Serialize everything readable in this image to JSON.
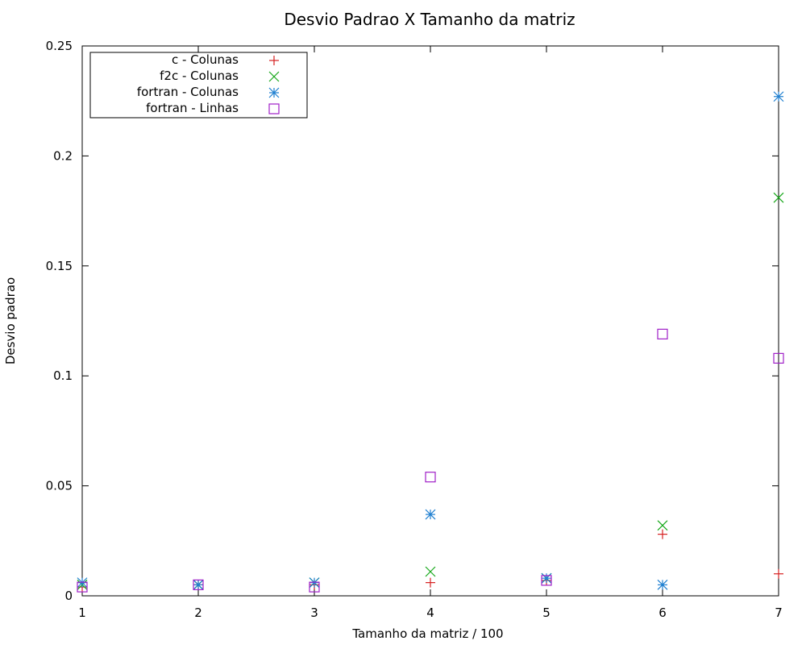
{
  "chart_data": {
    "type": "scatter",
    "title": "Desvio Padrao X Tamanho da matriz",
    "xlabel": "Tamanho da matriz / 100",
    "ylabel": "Desvio padrao",
    "xlim": [
      1,
      7
    ],
    "ylim": [
      0,
      0.25
    ],
    "xticks": [
      "1",
      "2",
      "3",
      "4",
      "5",
      "6",
      "7"
    ],
    "yticks": [
      "0",
      "0.05",
      "0.1",
      "0.15",
      "0.2",
      "0.25"
    ],
    "grid": false,
    "legend_position": "top-left",
    "series": [
      {
        "name": "c - Colunas",
        "marker": "plus",
        "color": "#d62020",
        "x": [
          1,
          2,
          3,
          4,
          5,
          6,
          7
        ],
        "y": [
          0.004,
          0.005,
          0.005,
          0.006,
          0.007,
          0.028,
          0.01
        ]
      },
      {
        "name": "f2c - Colunas",
        "marker": "cross",
        "color": "#17a81a",
        "x": [
          1,
          2,
          3,
          4,
          5,
          6,
          7
        ],
        "y": [
          0.005,
          0.005,
          0.006,
          0.011,
          0.008,
          0.032,
          0.181
        ]
      },
      {
        "name": "fortran - Colunas",
        "marker": "star",
        "color": "#1f7fd0",
        "x": [
          1,
          2,
          3,
          4,
          5,
          6,
          7
        ],
        "y": [
          0.006,
          0.005,
          0.006,
          0.037,
          0.008,
          0.005,
          0.227
        ]
      },
      {
        "name": "fortran - Linhas",
        "marker": "square",
        "color": "#a020c8",
        "x": [
          1,
          2,
          3,
          4,
          5,
          6,
          7
        ],
        "y": [
          0.004,
          0.005,
          0.004,
          0.054,
          0.007,
          0.119,
          0.108
        ]
      }
    ]
  }
}
